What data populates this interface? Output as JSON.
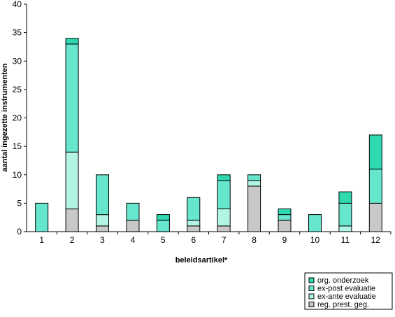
{
  "chart_data": {
    "type": "bar",
    "stacked": true,
    "categories": [
      "1",
      "2",
      "3",
      "4",
      "5",
      "6",
      "7",
      "8",
      "9",
      "10",
      "11",
      "12"
    ],
    "series": [
      {
        "name": "reg. prest. geg.",
        "color": "#c8c8c8",
        "values": [
          0,
          4,
          1,
          2,
          0,
          1,
          1,
          8,
          2,
          0,
          0,
          5
        ]
      },
      {
        "name": "ex-ante evaluatie",
        "color": "#b2f5e4",
        "values": [
          0,
          10,
          2,
          0,
          0,
          1,
          3,
          1,
          0,
          0,
          1,
          0
        ]
      },
      {
        "name": "ex-post evaluatie",
        "color": "#66e6cc",
        "values": [
          5,
          19,
          7,
          3,
          2,
          4,
          5,
          1,
          1,
          3,
          4,
          6
        ]
      },
      {
        "name": "org. onderzoek",
        "color": "#2ed9b0",
        "values": [
          0,
          1,
          0,
          0,
          1,
          0,
          1,
          0,
          1,
          0,
          2,
          6
        ]
      }
    ],
    "xlabel": "beleidsartikel*",
    "ylabel": "aantal ingezette instrumenten",
    "ylim": [
      0,
      40
    ],
    "yticks": [
      0,
      5,
      10,
      15,
      20,
      25,
      30,
      35,
      40
    ],
    "grid": false,
    "legend_position": "bottom-right"
  }
}
